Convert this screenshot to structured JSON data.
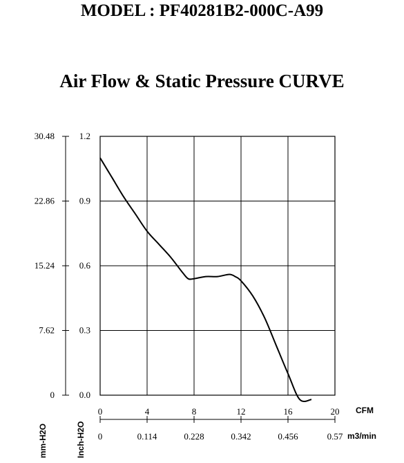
{
  "header": {
    "model": "MODEL : PF40281B2-000C-A99",
    "curve_title": "Air Flow & Static Pressure CURVE"
  },
  "chart_data": {
    "type": "line",
    "title": "Air Flow & Static Pressure CURVE",
    "x_primary_unit": "CFM",
    "x_secondary_unit": "m3/min",
    "y_primary_unit": "Inch-H2O",
    "y_secondary_unit": "mm-H2O",
    "x_ticks": [
      "0",
      "4",
      "8",
      "12",
      "16",
      "20"
    ],
    "x_secondary_ticks": [
      "0",
      "0.114",
      "0.228",
      "0.342",
      "0.456",
      "0.57"
    ],
    "y_ticks": [
      "0.0",
      "0.3",
      "0.6",
      "0.9",
      "1.2"
    ],
    "y_secondary_ticks": [
      "0",
      "7.62",
      "15.24",
      "22.86",
      "30.48"
    ],
    "xlim": [
      0,
      20
    ],
    "ylim": [
      0,
      1.2
    ],
    "grid": true,
    "series": [
      {
        "x": [
          0,
          1,
          2,
          3,
          4,
          5,
          6,
          7,
          7.5,
          8,
          9,
          10,
          11,
          11.5,
          12,
          13,
          14,
          15,
          16,
          17,
          18
        ],
        "y": [
          1.1,
          1.01,
          0.92,
          0.84,
          0.76,
          0.7,
          0.64,
          0.57,
          0.54,
          0.54,
          0.55,
          0.55,
          0.56,
          0.55,
          0.53,
          0.46,
          0.36,
          0.23,
          0.1,
          -0.02,
          -0.02
        ]
      }
    ]
  }
}
